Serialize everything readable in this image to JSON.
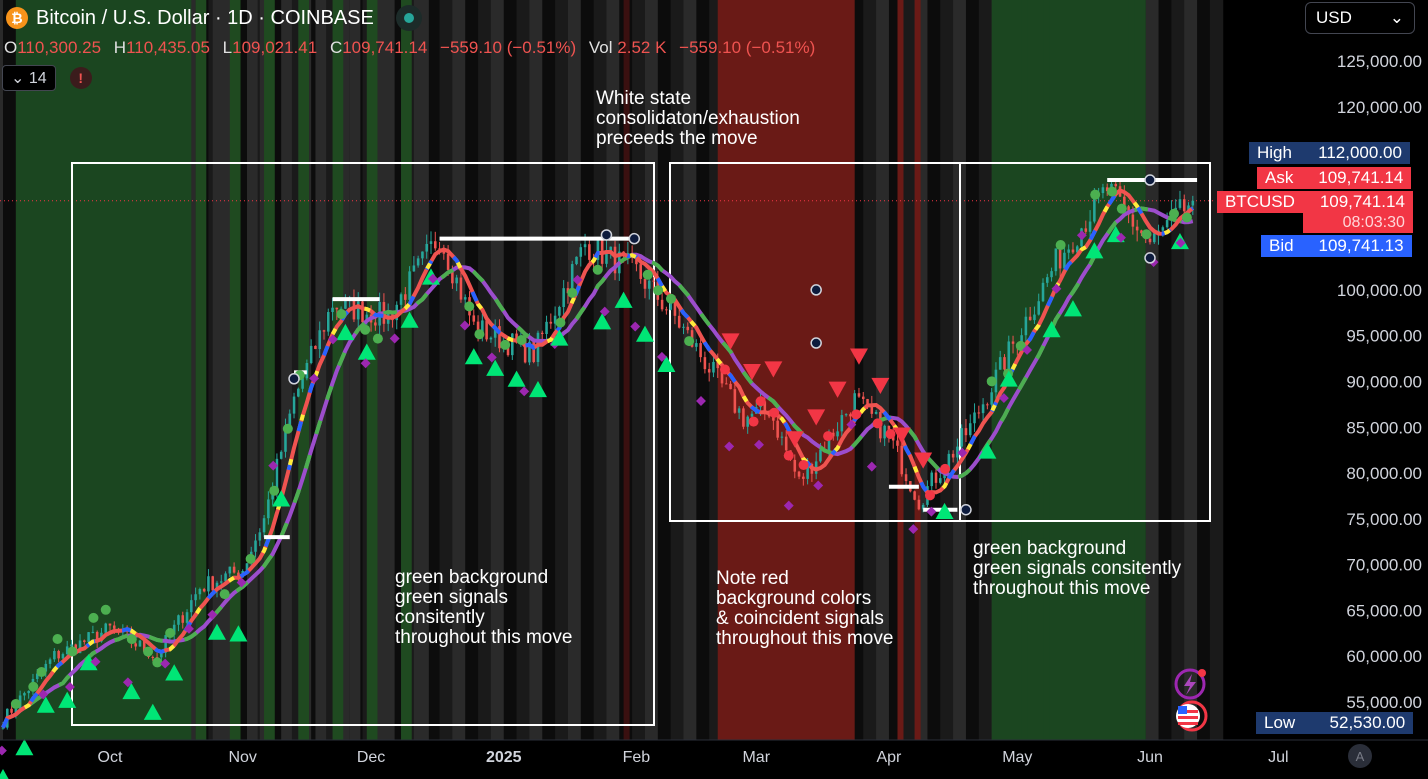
{
  "header": {
    "symbol_badge": "₿",
    "title": "Bitcoin / U.S. Dollar · 1D · COINBASE",
    "ohlc": [
      {
        "k": "O",
        "v": "110,300.25"
      },
      {
        "k": "H",
        "v": "110,435.05"
      },
      {
        "k": "L",
        "v": "109,021.41"
      },
      {
        "k": "C",
        "v": "109,741.14"
      }
    ],
    "change": "−559.10 (−0.51%)",
    "vol_label": "Vol",
    "vol_value": "2.52 K",
    "vol_change": "−559.10 (−0.51%)",
    "indicator_count": "14",
    "warning": "!"
  },
  "currency_select": {
    "value": "USD",
    "options": [
      "USD"
    ]
  },
  "price_tags": {
    "high": {
      "label": "High",
      "value": "112,000.00",
      "color": "#1e3a6e"
    },
    "ask": {
      "label": "Ask",
      "value": "109,741.14",
      "color": "#f23645"
    },
    "symbol": {
      "label": "BTCUSD",
      "value": "109,741.14",
      "countdown": "08:03:30",
      "color": "#f23645"
    },
    "bid": {
      "label": "Bid",
      "value": "109,741.13",
      "color": "#2962ff"
    },
    "low": {
      "label": "Low",
      "value": "52,530.00",
      "color": "#1e3a6e"
    }
  },
  "bottom": {
    "auto_button": "A"
  },
  "chart_data": {
    "type": "candlestick",
    "title": "",
    "ylim": [
      50000,
      130000
    ],
    "y_ticks": [
      "125,000.00",
      "120,000.00",
      "100,000.00",
      "95,000.00",
      "90,000.00",
      "85,000.00",
      "80,000.00",
      "75,000.00",
      "70,000.00",
      "65,000.00",
      "60,000.00",
      "55,000.00"
    ],
    "y_tick_values": [
      125000,
      120000,
      100000,
      95000,
      90000,
      85000,
      80000,
      75000,
      70000,
      65000,
      60000,
      55000
    ],
    "x_ticks": [
      "Oct",
      "Nov",
      "Dec",
      "2025",
      "Feb",
      "Mar",
      "Apr",
      "May",
      "Jun",
      "Jul"
    ],
    "x_tick_dates": [
      "2024-10-01",
      "2024-11-01",
      "2024-12-01",
      "2025-01-01",
      "2025-02-01",
      "2025-03-01",
      "2025-04-01",
      "2025-05-01",
      "2025-06-01",
      "2025-07-01"
    ],
    "price_anchors": [
      [
        "2024-09-06",
        53000
      ],
      [
        "2024-09-18",
        60000
      ],
      [
        "2024-10-01",
        63000
      ],
      [
        "2024-10-12",
        60000
      ],
      [
        "2024-10-22",
        67500
      ],
      [
        "2024-11-01",
        69500
      ],
      [
        "2024-11-06",
        75000
      ],
      [
        "2024-11-13",
        88000
      ],
      [
        "2024-11-22",
        98500
      ],
      [
        "2024-12-05",
        97000
      ],
      [
        "2024-12-17",
        106000
      ],
      [
        "2024-12-25",
        96000
      ],
      [
        "2025-01-08",
        93000
      ],
      [
        "2025-01-20",
        105000
      ],
      [
        "2025-02-01",
        102000
      ],
      [
        "2025-02-10",
        97000
      ],
      [
        "2025-02-26",
        86000
      ],
      [
        "2025-03-04",
        87000
      ],
      [
        "2025-03-11",
        79000
      ],
      [
        "2025-03-24",
        88000
      ],
      [
        "2025-04-01",
        84000
      ],
      [
        "2025-04-08",
        77000
      ],
      [
        "2025-04-20",
        85000
      ],
      [
        "2025-05-01",
        95000
      ],
      [
        "2025-05-10",
        103000
      ],
      [
        "2025-05-22",
        111000
      ],
      [
        "2025-06-01",
        105000
      ],
      [
        "2025-06-11",
        109741
      ]
    ],
    "background_state": [
      {
        "from": "2024-09-09",
        "to": "2024-10-20",
        "state": "green"
      },
      {
        "from": "2024-10-21",
        "to": "2024-12-15",
        "state": "mixed"
      },
      {
        "from": "2025-02-20",
        "to": "2025-03-24",
        "state": "red"
      },
      {
        "from": "2025-04-25",
        "to": "2025-05-31",
        "state": "green"
      }
    ],
    "levels": [
      {
        "from": "2024-12-17",
        "to": "2025-01-31",
        "value": 105600
      },
      {
        "from": "2024-11-22",
        "to": "2024-12-03",
        "value": 99000
      },
      {
        "from": "2024-11-13",
        "to": "2024-11-16",
        "value": 91000
      },
      {
        "from": "2024-11-06",
        "to": "2024-11-12",
        "value": 73000
      },
      {
        "from": "2025-04-01",
        "to": "2025-04-08",
        "value": 78500
      },
      {
        "from": "2025-04-09",
        "to": "2025-04-17",
        "value": 76000
      },
      {
        "from": "2025-05-22",
        "to": "2025-06-12",
        "value": 112000
      }
    ],
    "annotations": [
      {
        "text": [
          "White state",
          "consolidaton/exhaustion",
          "preceeds the move"
        ]
      },
      {
        "text": [
          "green background",
          "green signals",
          "consitently",
          "throughout this move"
        ]
      },
      {
        "text": [
          "Note  red",
          "background colors",
          "& coincident signals",
          "throughout this move"
        ]
      },
      {
        "text": [
          "green background",
          "green signals consitently",
          "throughout this move"
        ]
      }
    ],
    "current_price": 109741.14
  }
}
